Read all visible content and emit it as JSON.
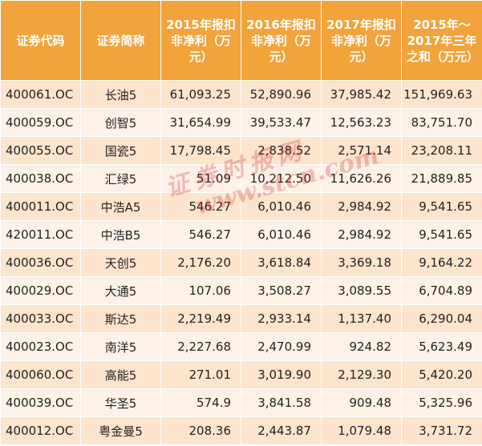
{
  "headers": [
    "证券代码",
    "证券简称",
    "2015年报扣非净利（万元）",
    "2016年报扣非净利（万元）",
    "2017年报扣非净利（万元）",
    "2015年～2017年三年之和（万元）"
  ],
  "rows": [
    [
      "400061.OC",
      "长油5",
      "61,093.25",
      "52,890.96",
      "37,985.42",
      "151,969.63"
    ],
    [
      "400059.OC",
      "创智5",
      "31,654.99",
      "39,533.47",
      "12,563.23",
      "83,751.70"
    ],
    [
      "400055.OC",
      "国瓷5",
      "17,798.45",
      "2,838.52",
      "2,571.14",
      "23,208.11"
    ],
    [
      "400038.OC",
      "汇绿5",
      "51.09",
      "10,212.50",
      "11,626.26",
      "21,889.85"
    ],
    [
      "400011.OC",
      "中浩A5",
      "546.27",
      "6,010.46",
      "2,984.92",
      "9,541.65"
    ],
    [
      "420011.OC",
      "中浩B5",
      "546.27",
      "6,010.46",
      "2,984.92",
      "9,541.65"
    ],
    [
      "400036.OC",
      "天创5",
      "2,176.20",
      "3,618.84",
      "3,369.18",
      "9,164.22"
    ],
    [
      "400029.OC",
      "大通5",
      "107.06",
      "3,508.27",
      "3,089.55",
      "6,704.89"
    ],
    [
      "400033.OC",
      "斯达5",
      "2,219.49",
      "2,933.14",
      "1,137.40",
      "6,290.04"
    ],
    [
      "400023.OC",
      "南洋5",
      "2,227.68",
      "2,470.99",
      "924.82",
      "5,623.49"
    ],
    [
      "400060.OC",
      "高能5",
      "271.01",
      "3,019.90",
      "2,129.30",
      "5,420.20"
    ],
    [
      "400039.OC",
      "华圣5",
      "574.9",
      "3,841.58",
      "909.48",
      "5,325.96"
    ],
    [
      "400012.OC",
      "粤金曼5",
      "208.36",
      "2,443.87",
      "1,079.48",
      "3,731.72"
    ]
  ],
  "watermark": {
    "text": "证券时报网",
    "url": "www.stcn.com"
  },
  "colors": {
    "header_bg": "#f2a33a",
    "row_odd": "#fde4cd",
    "row_even": "#fef2e8",
    "watermark": "#cd2828"
  }
}
